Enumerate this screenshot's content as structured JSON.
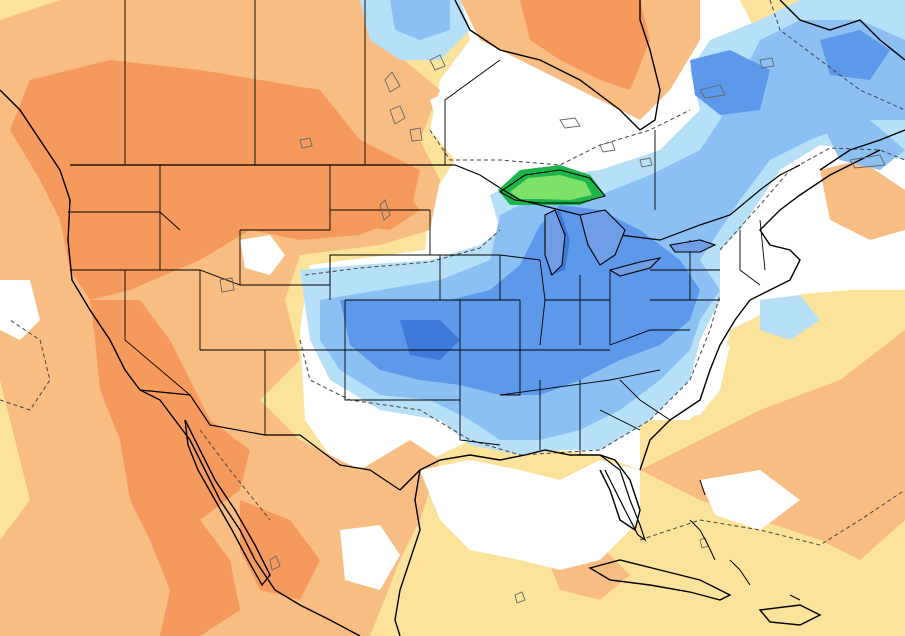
{
  "map": {
    "type": "temperature-anomaly-map",
    "region": "North America",
    "text_labels": [],
    "colors": {
      "background": "#ffffff",
      "warm_strong": "#f59a5c",
      "warm_moderate": "#f8bd83",
      "warm_weak": "#fbe39c",
      "cool_weak": "#b6e0f7",
      "cool_moderate": "#8cc0f3",
      "cool_strong": "#5e98ea",
      "cool_stronger": "#3f79dc",
      "cold_extreme_outer": "#1db54a",
      "cold_extreme_inner": "#7ee26a",
      "boundaries": "#000000",
      "lakes_outline": "#555555",
      "contour_dashed": "#444444"
    },
    "features": [
      "country-borders",
      "state-borders",
      "coastlines",
      "lakes",
      "dashed-contours"
    ]
  }
}
